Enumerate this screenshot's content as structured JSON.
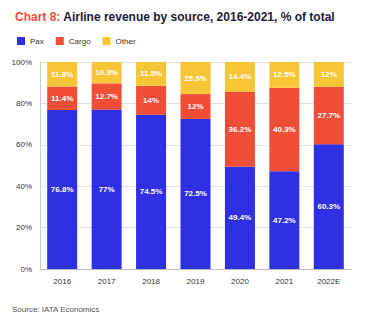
{
  "chart_data": {
    "type": "bar",
    "title": "Chart 8: Airline revenue by source, 2016-2021, % of total",
    "annotations": [
      "Source: IATA Economics"
    ],
    "categories": [
      "2016",
      "2017",
      "2018",
      "2019",
      "2020",
      "2021",
      "2022E"
    ],
    "series": [
      {
        "name": "Pax",
        "color": "#2f2fe4",
        "values": [
          76.8,
          77,
          74.5,
          72.5,
          49.4,
          47.2,
          60.3
        ],
        "value_labels": [
          "76.8%",
          "77%",
          "74.5%",
          "72.5%",
          "49.4%",
          "47.2%",
          "60.3%"
        ]
      },
      {
        "name": "Cargo",
        "color": "#f04e37",
        "values": [
          11.4,
          12.7,
          14,
          12,
          36.2,
          40.3,
          27.7
        ],
        "value_labels": [
          "11.4%",
          "12.7%",
          "14%",
          "12%",
          "36.2%",
          "40.3%",
          "27.7%"
        ]
      },
      {
        "name": "Other",
        "color": "#f8c537",
        "values": [
          11.8,
          10.3,
          11.5,
          15.5,
          14.4,
          12.5,
          12
        ],
        "value_labels": [
          "11.8%",
          "10.3%",
          "11.5%",
          "15.5%",
          "14.4%",
          "12.5%",
          "12%"
        ]
      }
    ],
    "ylim": [
      0,
      100
    ],
    "yticks": [
      {
        "value": 0,
        "label": "0%"
      },
      {
        "value": 20,
        "label": "20%"
      },
      {
        "value": 40,
        "label": "40%"
      },
      {
        "value": 60,
        "label": "60%"
      },
      {
        "value": 80,
        "label": "80%"
      },
      {
        "value": 100,
        "label": "100%"
      }
    ],
    "stacked": true,
    "data_labels": true,
    "grid": true,
    "legend": "top-left"
  }
}
